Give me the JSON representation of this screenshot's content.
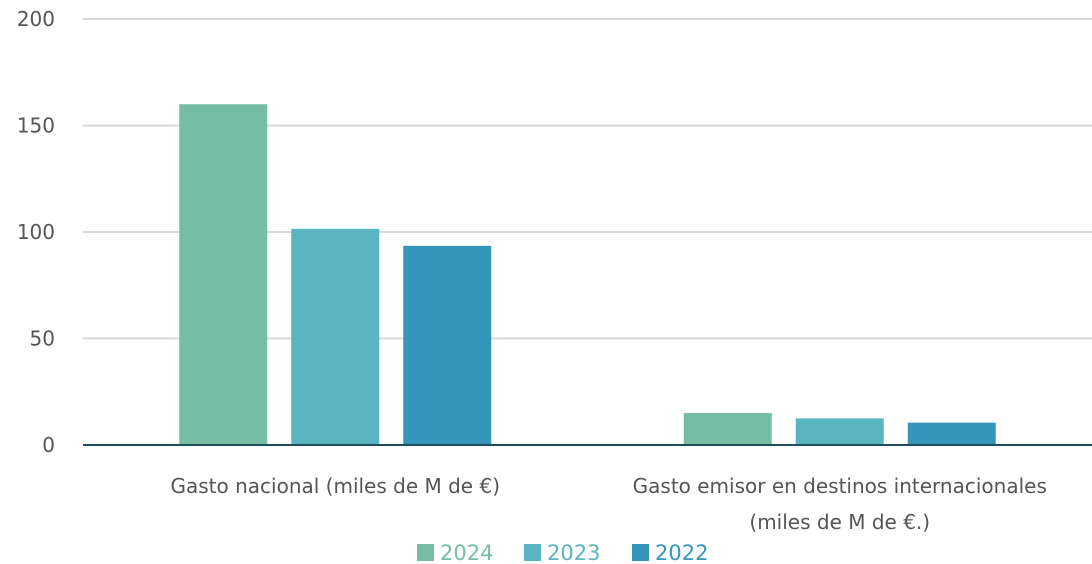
{
  "chart_data": {
    "type": "bar",
    "categories": [
      [
        "Gasto nacional (miles de M de €)"
      ],
      [
        "Gasto emisor en destinos internacionales",
        "(miles de M de €.)"
      ]
    ],
    "series": [
      {
        "name": "2024",
        "values": [
          160,
          15
        ],
        "color": "#76bda6"
      },
      {
        "name": "2023",
        "values": [
          101.5,
          12.5
        ],
        "color": "#5ab5c1"
      },
      {
        "name": "2022",
        "values": [
          93.5,
          10.5
        ],
        "color": "#3695bb"
      }
    ],
    "y_ticks": [
      "0",
      "50",
      "100",
      "150",
      "200"
    ],
    "ylim": [
      0,
      200
    ],
    "grid": true,
    "legend": "bottom-center",
    "title": "",
    "xlabel": "",
    "ylabel": ""
  }
}
